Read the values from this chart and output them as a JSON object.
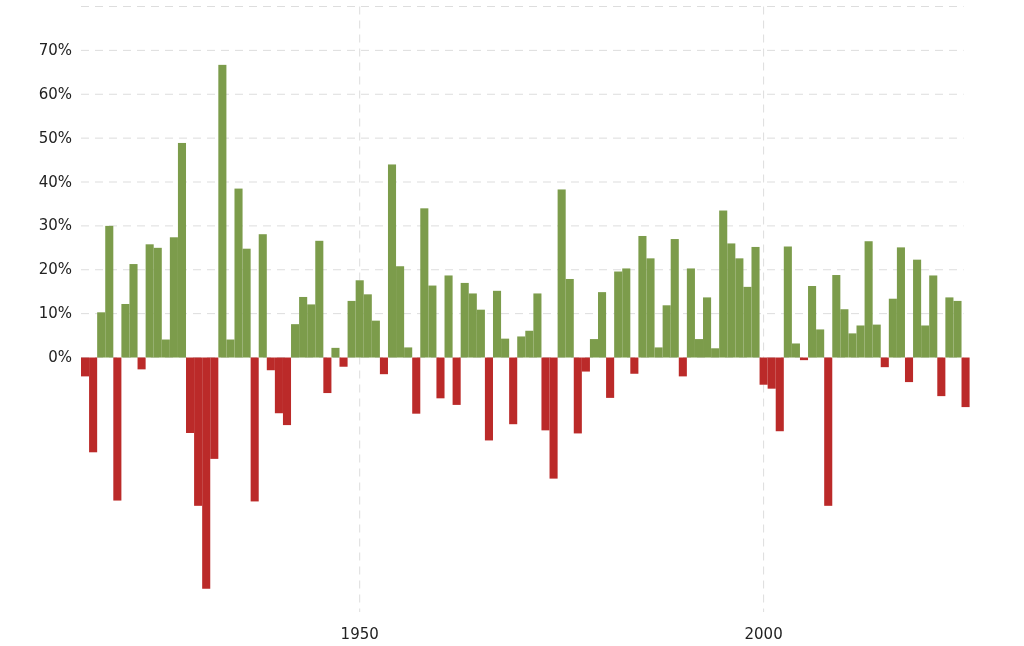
{
  "chart_data": {
    "type": "bar",
    "x": [
      1916,
      1917,
      1918,
      1919,
      1920,
      1921,
      1922,
      1923,
      1924,
      1925,
      1926,
      1927,
      1928,
      1929,
      1930,
      1931,
      1932,
      1933,
      1934,
      1935,
      1936,
      1937,
      1938,
      1939,
      1940,
      1941,
      1942,
      1943,
      1944,
      1945,
      1946,
      1947,
      1948,
      1949,
      1950,
      1951,
      1952,
      1953,
      1954,
      1955,
      1956,
      1957,
      1958,
      1959,
      1960,
      1961,
      1962,
      1963,
      1964,
      1965,
      1966,
      1967,
      1968,
      1969,
      1970,
      1971,
      1972,
      1973,
      1974,
      1975,
      1976,
      1977,
      1978,
      1979,
      1980,
      1981,
      1982,
      1983,
      1984,
      1985,
      1986,
      1987,
      1988,
      1989,
      1990,
      1991,
      1992,
      1993,
      1994,
      1995,
      1996,
      1997,
      1998,
      1999,
      2000,
      2001,
      2002,
      2003,
      2004,
      2005,
      2006,
      2007,
      2008,
      2009,
      2010,
      2011,
      2012,
      2013,
      2014,
      2015,
      2016,
      2017,
      2018,
      2019,
      2020,
      2021,
      2022,
      2023,
      2024,
      2025
    ],
    "values": [
      -4.3,
      -21.6,
      10.3,
      30.0,
      -32.6,
      12.2,
      21.3,
      -2.7,
      25.8,
      25.0,
      4.1,
      27.4,
      48.9,
      -17.2,
      -33.8,
      -52.7,
      -23.1,
      66.7,
      4.1,
      38.5,
      24.8,
      -32.8,
      28.1,
      -2.9,
      -12.7,
      -15.4,
      7.6,
      13.8,
      12.1,
      26.6,
      -8.1,
      2.2,
      -2.1,
      12.9,
      17.6,
      14.4,
      8.4,
      -3.8,
      44.0,
      20.8,
      2.3,
      -12.8,
      34.0,
      16.4,
      -9.3,
      18.7,
      -10.8,
      17.0,
      14.6,
      10.9,
      -18.9,
      15.2,
      4.3,
      -15.2,
      4.8,
      6.1,
      14.6,
      -16.6,
      -27.6,
      38.3,
      17.9,
      -17.3,
      -3.2,
      4.2,
      14.9,
      -9.2,
      19.6,
      20.3,
      -3.7,
      27.7,
      22.6,
      2.3,
      11.9,
      27.0,
      -4.3,
      20.3,
      4.2,
      13.7,
      2.1,
      33.5,
      26.0,
      22.6,
      16.1,
      25.2,
      -6.2,
      -7.1,
      -16.8,
      25.3,
      3.2,
      -0.6,
      16.3,
      6.4,
      -33.8,
      18.8,
      11.0,
      5.5,
      7.3,
      26.5,
      7.5,
      -2.2,
      13.4,
      25.1,
      -5.6,
      22.3,
      7.3,
      18.7,
      -8.8,
      13.7,
      12.9,
      -11.3
    ],
    "colors": [
      "#bb2a29",
      "#bb2a29",
      "#7c9c4b",
      "#7c9c4b",
      "#bb2a29",
      "#7c9c4b",
      "#7c9c4b",
      "#bb2a29",
      "#7c9c4b",
      "#7c9c4b",
      "#7c9c4b",
      "#7c9c4b",
      "#7c9c4b",
      "#bb2a29",
      "#bb2a29",
      "#bb2a29",
      "#bb2a29",
      "#7c9c4b",
      "#7c9c4b",
      "#7c9c4b",
      "#7c9c4b",
      "#bb2a29",
      "#7c9c4b",
      "#bb2a29",
      "#bb2a29",
      "#bb2a29",
      "#7c9c4b",
      "#7c9c4b",
      "#7c9c4b",
      "#7c9c4b",
      "#bb2a29",
      "#7c9c4b",
      "#bb2a29",
      "#7c9c4b",
      "#7c9c4b",
      "#7c9c4b",
      "#7c9c4b",
      "#bb2a29",
      "#7c9c4b",
      "#7c9c4b",
      "#7c9c4b",
      "#bb2a29",
      "#7c9c4b",
      "#7c9c4b",
      "#bb2a29",
      "#7c9c4b",
      "#bb2a29",
      "#7c9c4b",
      "#7c9c4b",
      "#7c9c4b",
      "#bb2a29",
      "#7c9c4b",
      "#7c9c4b",
      "#bb2a29",
      "#7c9c4b",
      "#7c9c4b",
      "#7c9c4b",
      "#bb2a29",
      "#bb2a29",
      "#7c9c4b",
      "#7c9c4b",
      "#bb2a29",
      "#bb2a29",
      "#7c9c4b",
      "#7c9c4b",
      "#bb2a29",
      "#7c9c4b",
      "#7c9c4b",
      "#bb2a29",
      "#7c9c4b",
      "#7c9c4b",
      "#7c9c4b",
      "#7c9c4b",
      "#7c9c4b",
      "#bb2a29",
      "#7c9c4b",
      "#7c9c4b",
      "#7c9c4b",
      "#7c9c4b",
      "#7c9c4b",
      "#7c9c4b",
      "#7c9c4b",
      "#7c9c4b",
      "#7c9c4b",
      "#bb2a29",
      "#bb2a29",
      "#bb2a29",
      "#7c9c4b",
      "#7c9c4b",
      "#bb2a29",
      "#7c9c4b",
      "#7c9c4b",
      "#bb2a29",
      "#7c9c4b",
      "#7c9c4b",
      "#7c9c4b",
      "#7c9c4b",
      "#7c9c4b",
      "#7c9c4b",
      "#bb2a29",
      "#7c9c4b",
      "#7c9c4b",
      "#bb2a29",
      "#7c9c4b",
      "#7c9c4b",
      "#7c9c4b",
      "#bb2a29",
      "#7c9c4b",
      "#7c9c4b",
      "#bb2a29"
    ],
    "xlim": [
      1915.5,
      2025.5
    ],
    "xticks": [
      1950,
      2000
    ],
    "ylim": [
      -58,
      80
    ],
    "yticks": [
      {
        "value": 0,
        "label": "0%"
      },
      {
        "value": 10,
        "label": "10%"
      },
      {
        "value": 20,
        "label": "20%"
      },
      {
        "value": 30,
        "label": "30%"
      },
      {
        "value": 40,
        "label": "40%"
      },
      {
        "value": 50,
        "label": "50%"
      },
      {
        "value": 60,
        "label": "60%"
      },
      {
        "value": 70,
        "label": "70%"
      },
      {
        "value": 80,
        "label": null
      }
    ],
    "grid": true
  }
}
